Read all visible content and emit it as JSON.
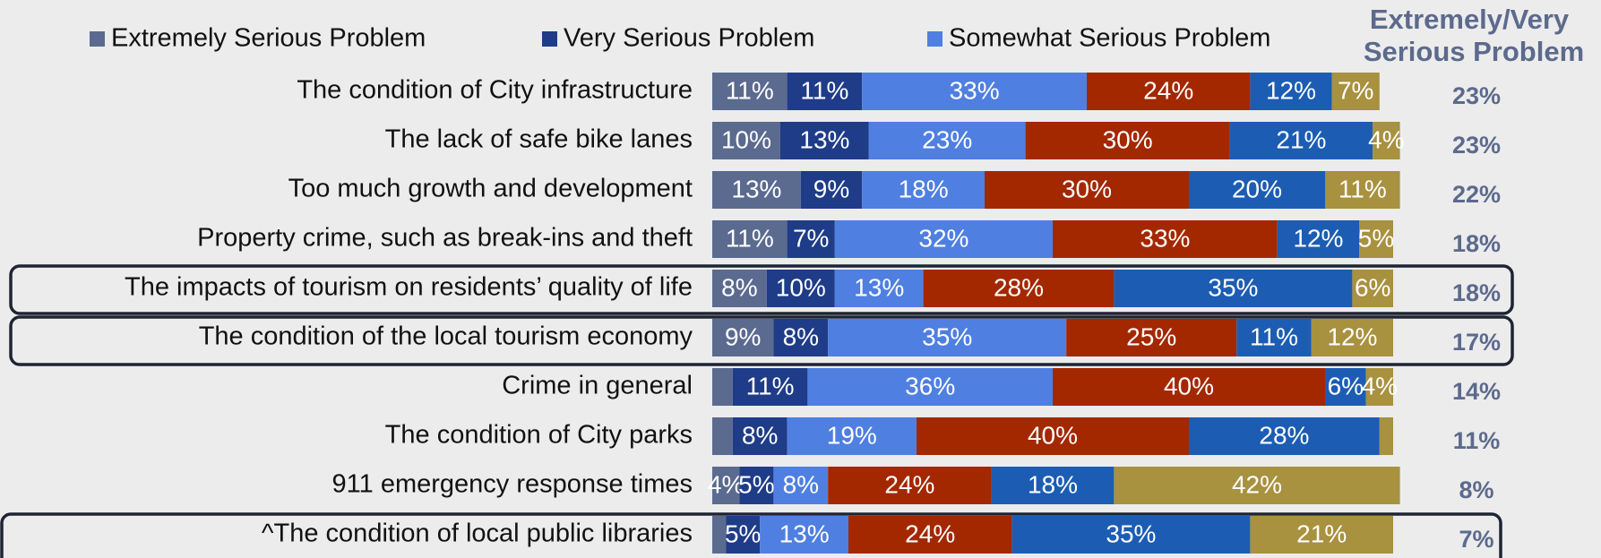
{
  "chart_data": {
    "type": "stacked-bar-horizontal",
    "categories": [
      "The condition of City infrastructure",
      "The lack of safe bike lanes",
      "Too much growth and development",
      "Property crime, such as break-ins and theft",
      "The impacts of tourism on residents’ quality of life",
      "The condition of the local tourism economy",
      "Crime in general",
      "The condition of City parks",
      "911 emergency response times",
      "^The condition of local public libraries"
    ],
    "xlim": [
      0,
      100
    ],
    "series": [
      {
        "name": "Extremely Serious Problem",
        "color": "#5b6a8f",
        "values": [
          11,
          10,
          13,
          11,
          8,
          9,
          3,
          3,
          4,
          2
        ],
        "value_labels": [
          "11%",
          "10%",
          "13%",
          "11%",
          "8%",
          "9%",
          null,
          null,
          "4%",
          null
        ]
      },
      {
        "name": "Very Serious Problem",
        "color": "#1f3c88",
        "values": [
          11,
          13,
          9,
          7,
          10,
          8,
          11,
          8,
          5,
          5
        ],
        "value_labels": [
          "11%",
          "13%",
          "9%",
          "7%",
          "10%",
          "8%",
          "11%",
          "8%",
          "5%",
          "5%"
        ]
      },
      {
        "name": "Somewhat Serious Problem",
        "color": "#4f7fe0",
        "values": [
          33,
          23,
          18,
          32,
          13,
          35,
          36,
          19,
          8,
          13
        ],
        "value_labels": [
          "33%",
          "23%",
          "18%",
          "32%",
          "13%",
          "35%",
          "36%",
          "19%",
          "8%",
          "13%"
        ]
      },
      {
        "color": "#a32800",
        "values": [
          24,
          30,
          30,
          33,
          28,
          25,
          40,
          40,
          24,
          24
        ],
        "value_labels": [
          "24%",
          "30%",
          "30%",
          "33%",
          "28%",
          "25%",
          "40%",
          "40%",
          "24%",
          "24%"
        ]
      },
      {
        "color": "#1c5db3",
        "values": [
          12,
          21,
          20,
          12,
          35,
          11,
          6,
          28,
          18,
          35
        ],
        "value_labels": [
          "12%",
          "21%",
          "20%",
          "12%",
          "35%",
          "11%",
          "6%",
          "28%",
          "18%",
          "35%"
        ]
      },
      {
        "color": "#a8913f",
        "values": [
          7,
          4,
          11,
          5,
          6,
          12,
          4,
          2,
          42,
          21
        ],
        "value_labels": [
          "7%",
          "4%",
          "11%",
          "5%",
          "6%",
          "12%",
          "4%",
          null,
          "42%",
          "21%"
        ]
      }
    ],
    "summary": {
      "title": [
        "Extremely/Very",
        "Serious Problem"
      ],
      "values": [
        23,
        23,
        22,
        18,
        18,
        17,
        14,
        11,
        8,
        7
      ],
      "value_labels": [
        "23%",
        "23%",
        "22%",
        "18%",
        "18%",
        "17%",
        "14%",
        "11%",
        "8%",
        "7%"
      ]
    }
  }
}
